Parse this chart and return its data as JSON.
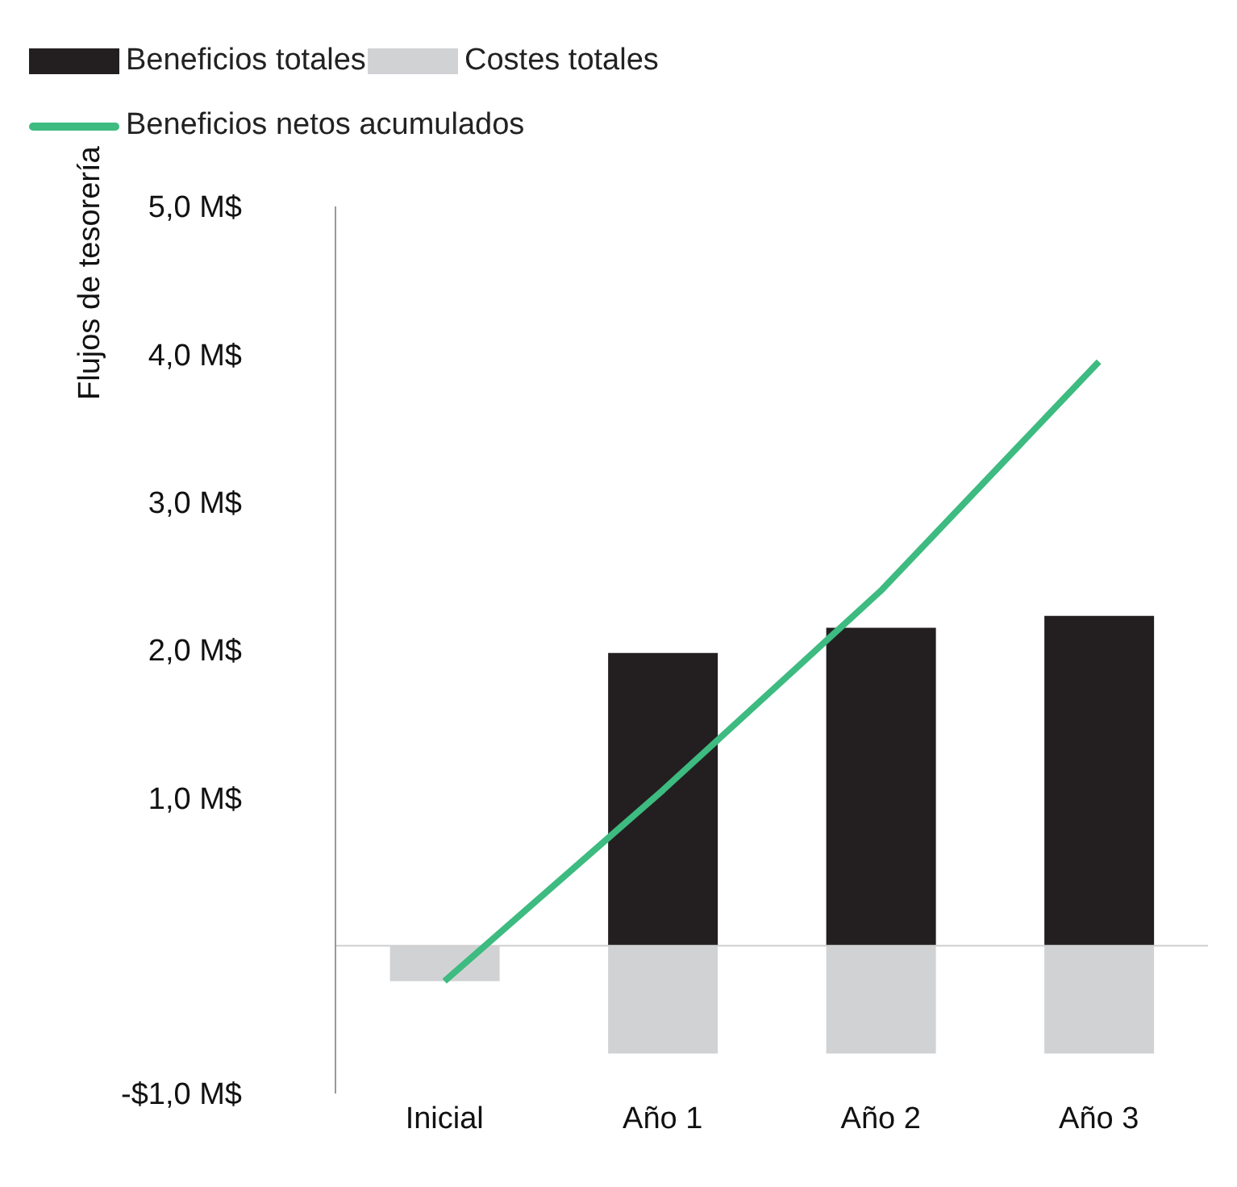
{
  "chart_data": {
    "type": "bar",
    "ylabel": "Flujos de tesorería",
    "categories": [
      "Inicial",
      "Año 1",
      "Año 2",
      "Año 3"
    ],
    "series": [
      {
        "name": "Beneficios totales",
        "color": "#231f20",
        "values": [
          0,
          1.98,
          2.15,
          2.23
        ]
      },
      {
        "name": "Costes totales",
        "color": "#d1d2d4",
        "values": [
          -0.24,
          -0.73,
          -0.73,
          -0.73
        ]
      },
      {
        "name": "Beneficios netos acumulados",
        "type": "line",
        "color": "#3dbb80",
        "values": [
          -0.24,
          1.05,
          2.4,
          3.95
        ]
      }
    ],
    "stacked": true,
    "ylim": [
      -1,
      5
    ],
    "yticks": [
      {
        "value": -1,
        "label": "-$1,0 M$"
      },
      {
        "value": 0,
        "label": null
      },
      {
        "value": 1,
        "label": "1,0 M$"
      },
      {
        "value": 2,
        "label": "2,0 M$"
      },
      {
        "value": 3,
        "label": "3,0 M$"
      },
      {
        "value": 4,
        "label": "4,0 M$"
      },
      {
        "value": 5,
        "label": "5,0 M$"
      }
    ],
    "grid": false,
    "ref_lines": [
      {
        "axis": "y",
        "value": 0,
        "color": "#d0d0d0"
      }
    ],
    "legend": "top",
    "marker": "none"
  }
}
